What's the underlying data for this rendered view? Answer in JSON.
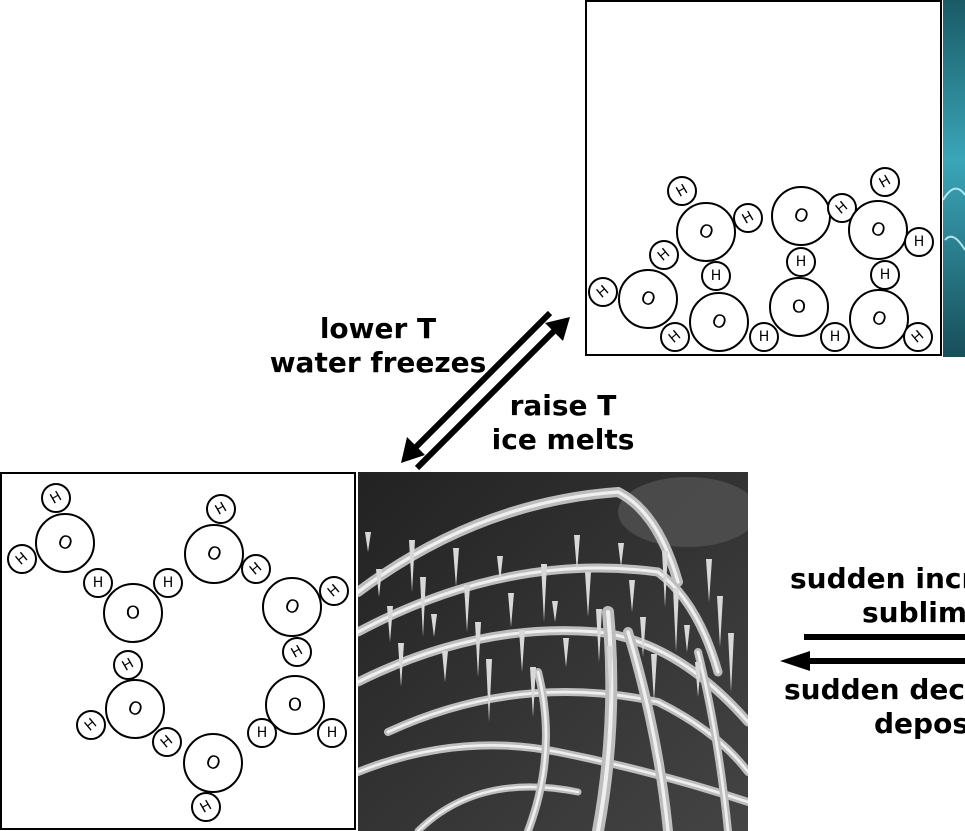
{
  "atom_labels": {
    "oxygen": "O",
    "hydrogen": "H"
  },
  "upper_arrow_label": {
    "line1": "lower T",
    "line2": "water freezes"
  },
  "lower_arrow_label": {
    "line1": "raise T",
    "line2": "ice melts"
  },
  "right_upper_label": {
    "line1": "sudden incr",
    "line2": "sublim"
  },
  "right_lower_label": {
    "line1": "sudden dec",
    "line2": "depos"
  },
  "colors": {
    "ink": "#000000",
    "background": "#ffffff",
    "water_photo": "#2a8a9a"
  },
  "icons": {
    "equilibrium_arrow": "double-harpoon-arrow",
    "left_arrow": "left-arrow"
  }
}
